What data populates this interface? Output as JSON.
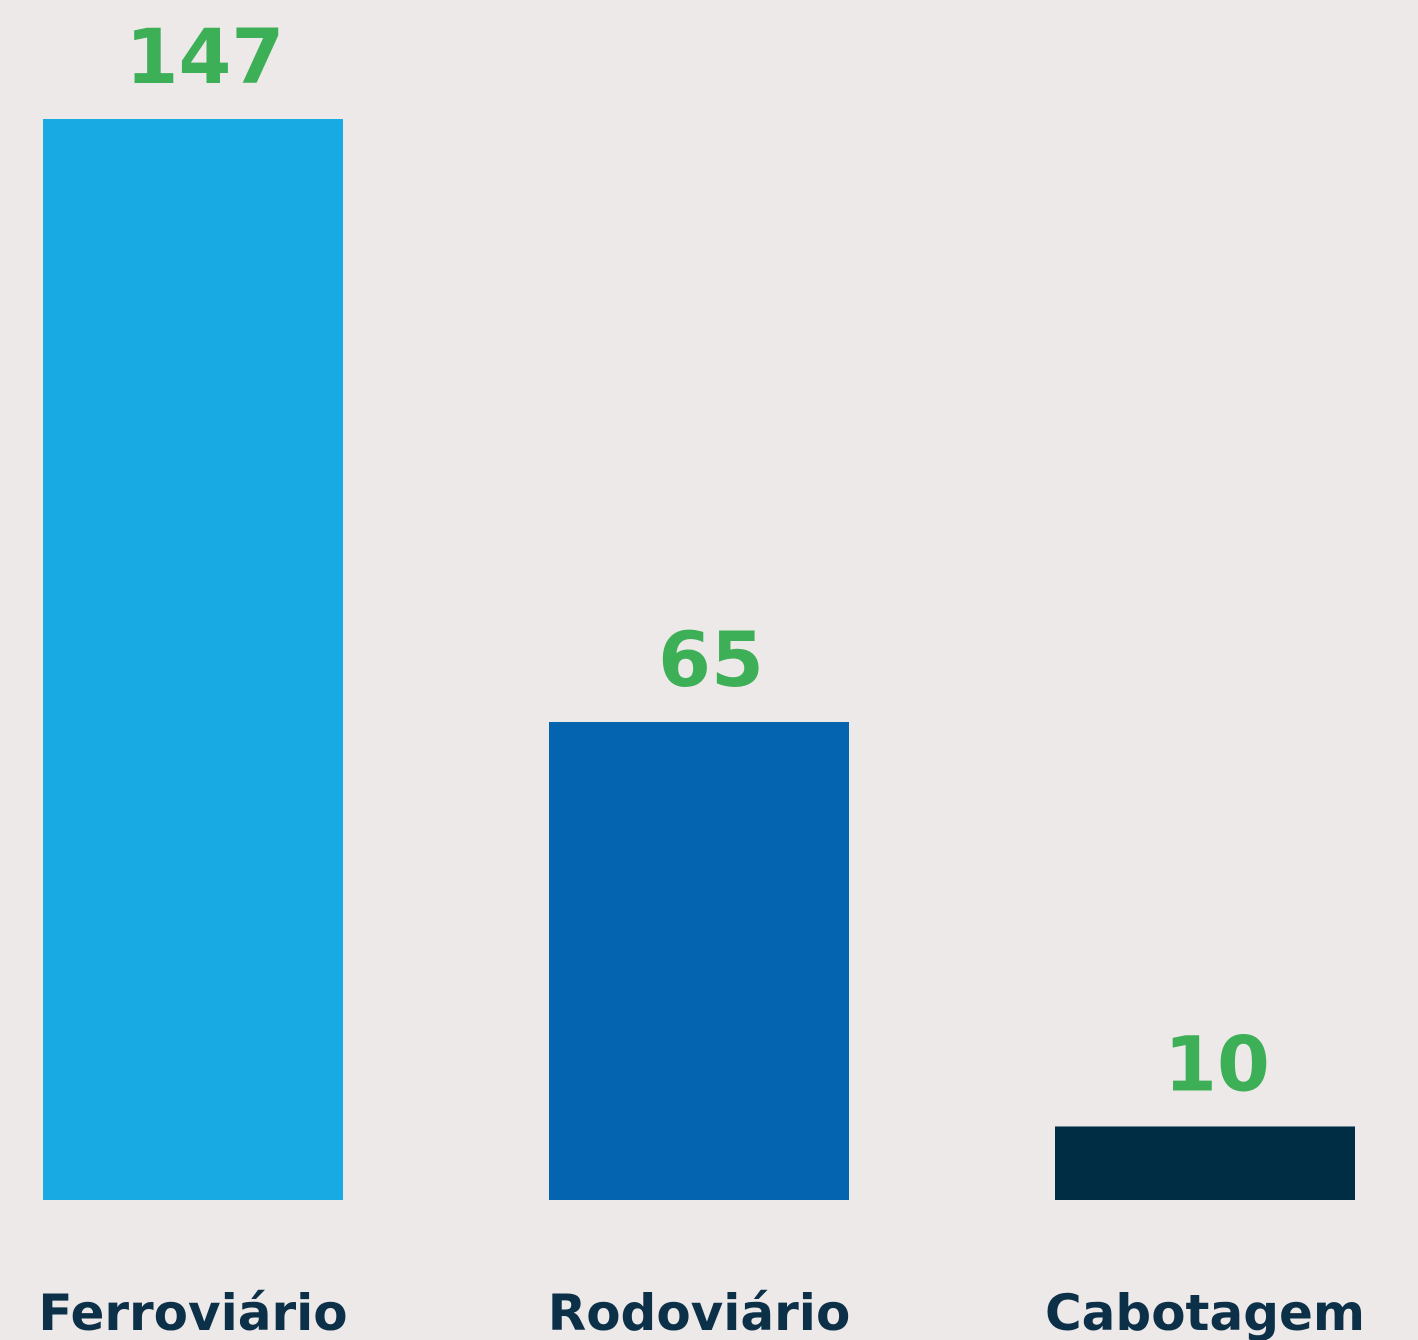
{
  "chart_data": {
    "type": "bar",
    "categories": [
      "Ferroviário",
      "Rodoviário",
      "Cabotagem"
    ],
    "values": [
      147,
      65,
      10
    ],
    "colors": [
      "#18aae2",
      "#0464b0",
      "#002d44"
    ]
  }
}
